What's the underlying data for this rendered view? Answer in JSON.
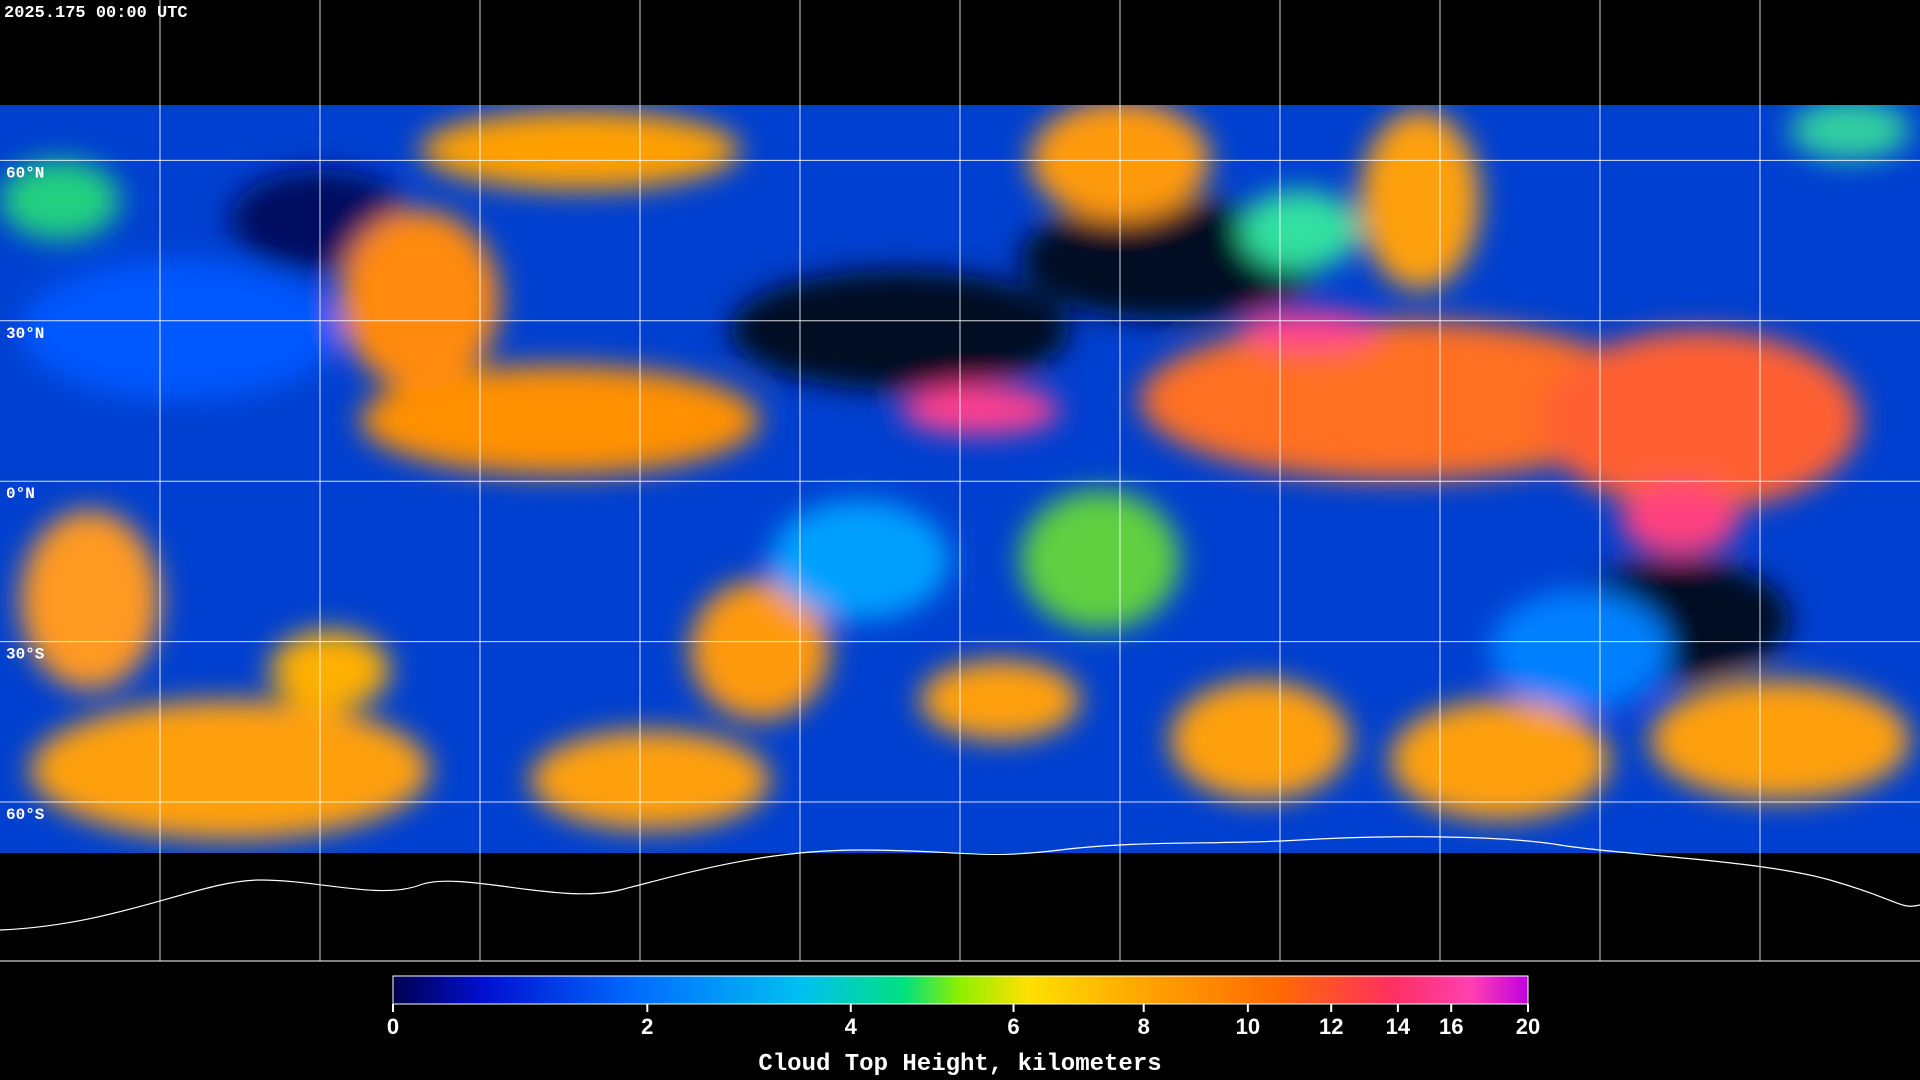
{
  "header": {
    "timestamp": "2025.175 00:00 UTC"
  },
  "map": {
    "lat_labels": [
      "60°N",
      "30°N",
      "0°N",
      "30°S",
      "60°S"
    ]
  },
  "colorbar": {
    "ticks": [
      0,
      2,
      4,
      6,
      8,
      10,
      12,
      14,
      16,
      20
    ],
    "label": "Cloud Top Height, kilometers"
  }
}
